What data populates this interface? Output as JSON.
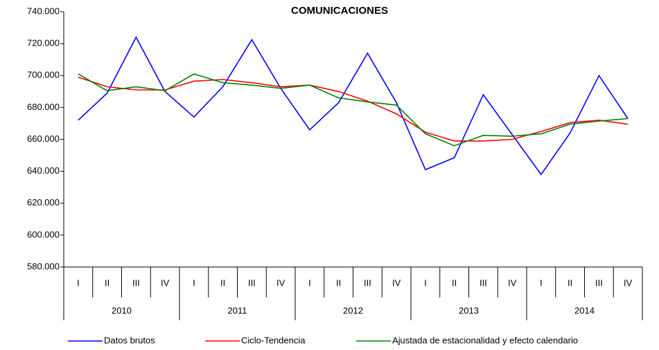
{
  "chart_data": {
    "type": "line",
    "title": "COMUNICACIONES",
    "categories": [
      "I",
      "II",
      "III",
      "IV",
      "I",
      "II",
      "III",
      "IV",
      "I",
      "II",
      "III",
      "IV",
      "I",
      "II",
      "III",
      "IV",
      "I",
      "II",
      "III",
      "IV"
    ],
    "x_groups": [
      "2010",
      "2011",
      "2012",
      "2013",
      "2014"
    ],
    "series": [
      {
        "name": "Datos brutos",
        "color": "#0000ff",
        "values": [
          672000,
          689000,
          724000,
          690000,
          674000,
          693000,
          722500,
          692000,
          666000,
          683000,
          714000,
          683000,
          641000,
          648500,
          688000,
          663000,
          638000,
          664000,
          700000,
          673000
        ]
      },
      {
        "name": "Ciclo-Tendencia",
        "color": "#ff0000",
        "values": [
          699000,
          693000,
          691000,
          691000,
          696500,
          697500,
          695500,
          693000,
          694000,
          690000,
          684000,
          676000,
          664500,
          659000,
          659000,
          660000,
          665000,
          670500,
          672000,
          669500
        ]
      },
      {
        "name": "Ajustada de estacionalidad y efecto calendario",
        "color": "#008000",
        "values": [
          701000,
          690500,
          693000,
          690500,
          701000,
          695500,
          694000,
          692000,
          694000,
          686000,
          683500,
          681500,
          663500,
          656000,
          662500,
          662000,
          663500,
          669500,
          671500,
          673000
        ]
      }
    ],
    "ylim": [
      580000,
      740000
    ],
    "yticks": [
      {
        "value": 580000,
        "label": "580.000"
      },
      {
        "value": 600000,
        "label": "600.000"
      },
      {
        "value": 620000,
        "label": "620.000"
      },
      {
        "value": 640000,
        "label": "640.000"
      },
      {
        "value": 660000,
        "label": "660.000"
      },
      {
        "value": 680000,
        "label": "680.000"
      },
      {
        "value": 700000,
        "label": "700.000"
      },
      {
        "value": 720000,
        "label": "720.000"
      },
      {
        "value": 740000,
        "label": "740.000"
      }
    ],
    "grid": false,
    "legend": "bottom"
  }
}
